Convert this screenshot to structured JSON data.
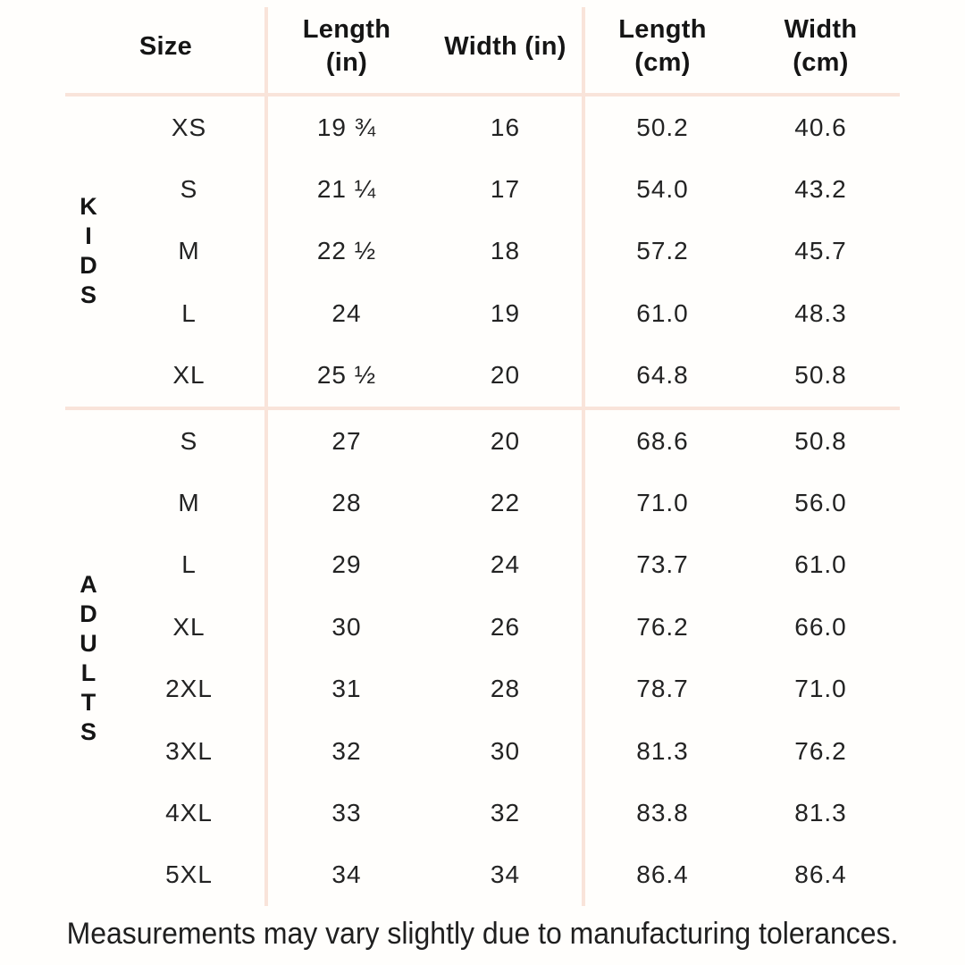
{
  "colors": {
    "divider_line": "#f9e4da",
    "text": "#1d1d1d"
  },
  "table": {
    "headers": [
      {
        "key": "size",
        "lines": [
          "Size"
        ]
      },
      {
        "key": "length_in",
        "lines": [
          "Length",
          "(in)"
        ]
      },
      {
        "key": "width_in",
        "lines": [
          "Width (in)"
        ]
      },
      {
        "key": "length_cm",
        "lines": [
          "Length",
          "(cm)"
        ]
      },
      {
        "key": "width_cm",
        "lines": [
          "Width",
          "(cm)"
        ]
      }
    ],
    "sections": [
      {
        "group": "KIDS",
        "rows": [
          {
            "size": "XS",
            "length_in": "19 ¾",
            "width_in": "16",
            "length_cm": "50.2",
            "width_cm": "40.6"
          },
          {
            "size": "S",
            "length_in": "21 ¼",
            "width_in": "17",
            "length_cm": "54.0",
            "width_cm": "43.2"
          },
          {
            "size": "M",
            "length_in": "22 ½",
            "width_in": "18",
            "length_cm": "57.2",
            "width_cm": "45.7"
          },
          {
            "size": "L",
            "length_in": "24",
            "width_in": "19",
            "length_cm": "61.0",
            "width_cm": "48.3"
          },
          {
            "size": "XL",
            "length_in": "25 ½",
            "width_in": "20",
            "length_cm": "64.8",
            "width_cm": "50.8"
          }
        ]
      },
      {
        "group": "ADULTS",
        "rows": [
          {
            "size": "S",
            "length_in": "27",
            "width_in": "20",
            "length_cm": "68.6",
            "width_cm": "50.8"
          },
          {
            "size": "M",
            "length_in": "28",
            "width_in": "22",
            "length_cm": "71.0",
            "width_cm": "56.0"
          },
          {
            "size": "L",
            "length_in": "29",
            "width_in": "24",
            "length_cm": "73.7",
            "width_cm": "61.0"
          },
          {
            "size": "XL",
            "length_in": "30",
            "width_in": "26",
            "length_cm": "76.2",
            "width_cm": "66.0"
          },
          {
            "size": "2XL",
            "length_in": "31",
            "width_in": "28",
            "length_cm": "78.7",
            "width_cm": "71.0"
          },
          {
            "size": "3XL",
            "length_in": "32",
            "width_in": "30",
            "length_cm": "81.3",
            "width_cm": "76.2"
          },
          {
            "size": "4XL",
            "length_in": "33",
            "width_in": "32",
            "length_cm": "83.8",
            "width_cm": "81.3"
          },
          {
            "size": "5XL",
            "length_in": "34",
            "width_in": "34",
            "length_cm": "86.4",
            "width_cm": "86.4"
          }
        ]
      }
    ]
  },
  "footnote": "Measurements may vary slightly due to manufacturing tolerances."
}
